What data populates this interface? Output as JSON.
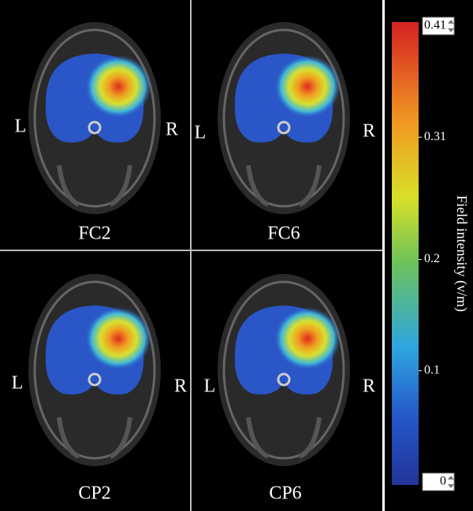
{
  "panels": [
    {
      "left": "L",
      "right": "R",
      "label": "FC2"
    },
    {
      "left": "L",
      "right": "R",
      "label": "FC6"
    },
    {
      "left": "L",
      "right": "R",
      "label": "CP2"
    },
    {
      "left": "L",
      "right": "R",
      "label": "CP6"
    }
  ],
  "colorbar": {
    "title": "Field intensity (v/m)",
    "ticks": [
      0.41,
      0.31,
      0.2,
      0.1,
      0
    ]
  }
}
